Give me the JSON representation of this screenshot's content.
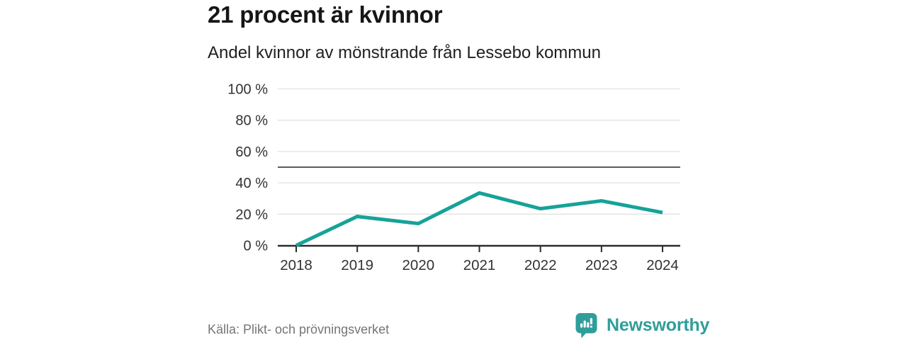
{
  "title": "21 procent är kvinnor",
  "subtitle": "Andel kvinnor av mönstrande från Lessebo kommun",
  "source": "Källa: Plikt- och prövningsverket",
  "brand": {
    "name": "Newsworthy",
    "icon": "chart-speech-bubble-icon",
    "color": "#2f9e9b"
  },
  "colors": {
    "line": "#17a298",
    "grid": "#e2e2e2",
    "reference_line": "#5a5c66",
    "axis": "#2b2b2b",
    "tick_text": "#333333",
    "title_text": "#161616",
    "muted_text": "#757575"
  },
  "chart_data": {
    "type": "line",
    "title": "21 procent är kvinnor",
    "subtitle": "Andel kvinnor av mönstrande från Lessebo kommun",
    "x": [
      "2018",
      "2019",
      "2020",
      "2021",
      "2022",
      "2023",
      "2024"
    ],
    "series": [
      {
        "name": "Andel kvinnor av mönstrande",
        "values": [
          0,
          18.5,
          14,
          33.5,
          23.5,
          28.5,
          21
        ]
      }
    ],
    "xlabel": "",
    "ylabel": "",
    "ylim": [
      0,
      100
    ],
    "yticks": [
      0,
      20,
      40,
      60,
      80,
      100
    ],
    "ytick_labels": [
      "0 %",
      "20 %",
      "40 %",
      "60 %",
      "80 %",
      "100 %"
    ],
    "reference_line": 50,
    "grid": "horizontal",
    "legend": "none",
    "line_color": "#17a298",
    "unit": "%"
  }
}
